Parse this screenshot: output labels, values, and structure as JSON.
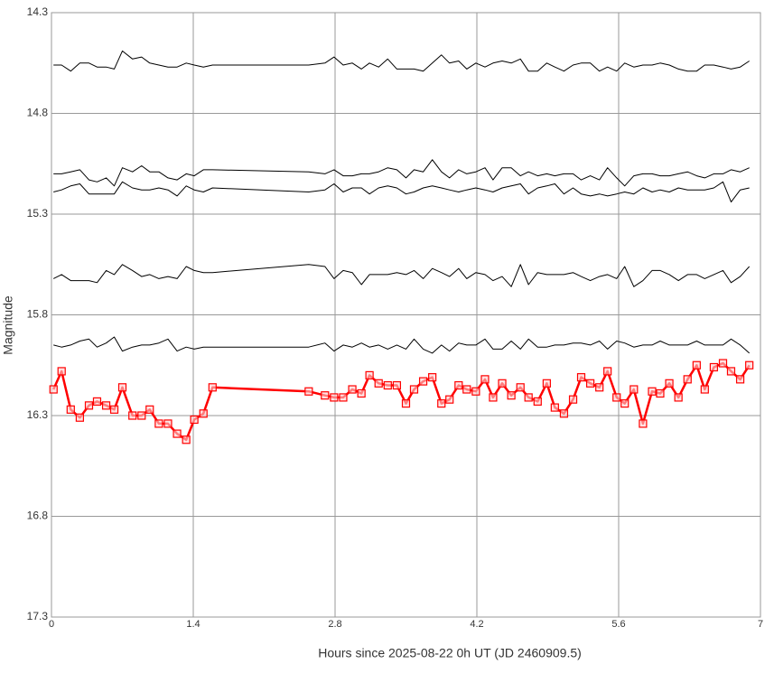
{
  "chart_data": {
    "type": "line",
    "xlabel": "Hours since 2025-08-22 0h UT (JD 2460909.5)",
    "ylabel": "Magnitude",
    "xlim": [
      0,
      7
    ],
    "xticks": [
      0,
      1.4,
      2.8,
      4.2,
      5.6,
      7
    ],
    "ylim": [
      14.3,
      17.3
    ],
    "yticks": [
      14.3,
      14.8,
      15.3,
      15.8,
      16.3,
      16.8,
      17.3
    ],
    "y_inverted": true,
    "grid": true,
    "x": [
      0.02,
      0.1,
      0.19,
      0.28,
      0.37,
      0.45,
      0.54,
      0.62,
      0.7,
      0.8,
      0.89,
      0.97,
      1.06,
      1.15,
      1.24,
      1.33,
      1.41,
      1.5,
      1.59,
      2.54,
      2.7,
      2.79,
      2.88,
      2.97,
      3.06,
      3.14,
      3.23,
      3.32,
      3.41,
      3.5,
      3.58,
      3.67,
      3.76,
      3.85,
      3.93,
      4.02,
      4.1,
      4.19,
      4.28,
      4.36,
      4.45,
      4.54,
      4.63,
      4.71,
      4.8,
      4.89,
      4.97,
      5.06,
      5.15,
      5.23,
      5.32,
      5.41,
      5.49,
      5.58,
      5.66,
      5.75,
      5.84,
      5.93,
      6.01,
      6.1,
      6.19,
      6.28,
      6.37,
      6.45,
      6.54,
      6.63,
      6.71,
      6.8,
      6.89
    ],
    "series": [
      {
        "color": "#000000",
        "values": [
          14.56,
          14.56,
          14.59,
          14.55,
          14.55,
          14.57,
          14.57,
          14.58,
          14.49,
          14.53,
          14.52,
          14.55,
          14.56,
          14.57,
          14.57,
          14.55,
          14.56,
          14.57,
          14.56,
          14.56,
          14.55,
          14.52,
          14.56,
          14.55,
          14.58,
          14.55,
          14.57,
          14.53,
          14.58,
          14.58,
          14.58,
          14.59,
          14.55,
          14.51,
          14.55,
          14.54,
          14.58,
          14.55,
          14.57,
          14.55,
          14.54,
          14.55,
          14.53,
          14.59,
          14.59,
          14.55,
          14.57,
          14.59,
          14.56,
          14.55,
          14.55,
          14.59,
          14.57,
          14.59,
          14.55,
          14.57,
          14.56,
          14.56,
          14.55,
          14.56,
          14.58,
          14.59,
          14.59,
          14.56,
          14.56,
          14.57,
          14.58,
          14.57,
          14.54
        ]
      },
      {
        "color": "#000000",
        "values": [
          15.1,
          15.1,
          15.09,
          15.08,
          15.13,
          15.14,
          15.12,
          15.16,
          15.07,
          15.09,
          15.06,
          15.09,
          15.09,
          15.12,
          15.13,
          15.1,
          15.11,
          15.08,
          15.08,
          15.09,
          15.1,
          15.08,
          15.11,
          15.11,
          15.1,
          15.1,
          15.09,
          15.07,
          15.08,
          15.12,
          15.08,
          15.09,
          15.03,
          15.09,
          15.12,
          15.08,
          15.1,
          15.09,
          15.07,
          15.13,
          15.07,
          15.07,
          15.11,
          15.09,
          15.11,
          15.1,
          15.11,
          15.1,
          15.1,
          15.13,
          15.11,
          15.13,
          15.07,
          15.12,
          15.16,
          15.11,
          15.1,
          15.1,
          15.11,
          15.11,
          15.1,
          15.09,
          15.11,
          15.12,
          15.1,
          15.1,
          15.08,
          15.09,
          15.07
        ]
      },
      {
        "color": "#000000",
        "values": [
          15.19,
          15.18,
          15.16,
          15.15,
          15.2,
          15.2,
          15.2,
          15.2,
          15.14,
          15.17,
          15.18,
          15.18,
          15.17,
          15.18,
          15.21,
          15.16,
          15.18,
          15.19,
          15.17,
          15.19,
          15.18,
          15.15,
          15.19,
          15.17,
          15.17,
          15.2,
          15.17,
          15.16,
          15.17,
          15.2,
          15.19,
          15.17,
          15.16,
          15.17,
          15.18,
          15.19,
          15.18,
          15.17,
          15.18,
          15.19,
          15.17,
          15.16,
          15.15,
          15.2,
          15.17,
          15.16,
          15.15,
          15.2,
          15.17,
          15.2,
          15.21,
          15.2,
          15.21,
          15.2,
          15.19,
          15.2,
          15.17,
          15.19,
          15.18,
          15.19,
          15.17,
          15.18,
          15.18,
          15.18,
          15.17,
          15.14,
          15.24,
          15.18,
          15.17
        ]
      },
      {
        "color": "#000000",
        "values": [
          15.62,
          15.6,
          15.63,
          15.63,
          15.63,
          15.64,
          15.58,
          15.6,
          15.55,
          15.58,
          15.61,
          15.6,
          15.62,
          15.61,
          15.62,
          15.56,
          15.58,
          15.59,
          15.59,
          15.55,
          15.56,
          15.62,
          15.58,
          15.59,
          15.65,
          15.6,
          15.6,
          15.6,
          15.59,
          15.6,
          15.58,
          15.62,
          15.57,
          15.59,
          15.61,
          15.57,
          15.62,
          15.59,
          15.6,
          15.63,
          15.61,
          15.66,
          15.55,
          15.65,
          15.59,
          15.6,
          15.6,
          15.6,
          15.59,
          15.61,
          15.63,
          15.61,
          15.6,
          15.62,
          15.56,
          15.66,
          15.63,
          15.58,
          15.58,
          15.6,
          15.63,
          15.6,
          15.6,
          15.62,
          15.6,
          15.58,
          15.64,
          15.61,
          15.56
        ]
      },
      {
        "color": "#000000",
        "values": [
          15.95,
          15.96,
          15.95,
          15.93,
          15.92,
          15.96,
          15.94,
          15.91,
          15.98,
          15.96,
          15.95,
          15.95,
          15.94,
          15.92,
          15.98,
          15.96,
          15.97,
          15.96,
          15.96,
          15.96,
          15.94,
          15.98,
          15.95,
          15.96,
          15.94,
          15.96,
          15.95,
          15.97,
          15.95,
          15.97,
          15.92,
          15.97,
          15.99,
          15.95,
          15.98,
          15.94,
          15.95,
          15.95,
          15.92,
          15.97,
          15.97,
          15.93,
          15.97,
          15.92,
          15.96,
          15.96,
          15.95,
          15.95,
          15.94,
          15.94,
          15.95,
          15.93,
          15.97,
          15.93,
          15.94,
          15.96,
          15.95,
          15.95,
          15.93,
          15.95,
          15.95,
          15.95,
          15.93,
          15.95,
          15.95,
          15.95,
          15.92,
          15.95,
          15.99
        ]
      },
      {
        "color": "#ff0000",
        "marker": "square",
        "values": [
          16.17,
          16.08,
          16.27,
          16.31,
          16.25,
          16.23,
          16.25,
          16.27,
          16.16,
          16.3,
          16.3,
          16.27,
          16.34,
          16.34,
          16.39,
          16.42,
          16.32,
          16.29,
          16.16,
          16.18,
          16.2,
          16.21,
          16.21,
          16.17,
          16.19,
          16.1,
          16.14,
          16.15,
          16.15,
          16.24,
          16.17,
          16.13,
          16.11,
          16.24,
          16.22,
          16.15,
          16.17,
          16.18,
          16.12,
          16.21,
          16.14,
          16.2,
          16.16,
          16.21,
          16.23,
          16.14,
          16.26,
          16.29,
          16.22,
          16.11,
          16.14,
          16.16,
          16.08,
          16.21,
          16.24,
          16.17,
          16.34,
          16.18,
          16.19,
          16.14,
          16.21,
          16.12,
          16.05,
          16.17,
          16.06,
          16.04,
          16.08,
          16.12,
          16.05
        ]
      }
    ]
  }
}
